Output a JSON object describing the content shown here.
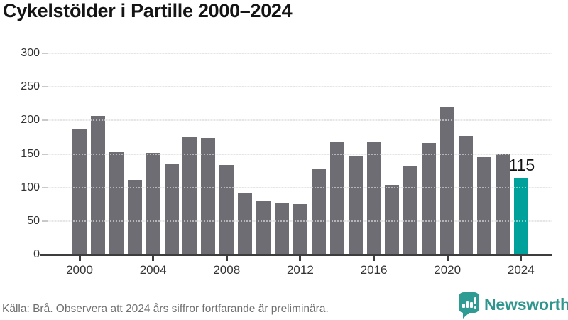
{
  "title": "Cykelstölder i Partille 2000–2024",
  "source_note": "Källa: Brå. Observera att 2024 års siffror fortfarande är preliminära.",
  "branding": {
    "name": "Newsworthy",
    "logo_icon": "speech-bubble-bar-chart-exclamation",
    "icon_color": "#2f9c94",
    "text_color": "#2f968f"
  },
  "colors": {
    "bar_default": "#6d6d73",
    "bar_highlight": "#00a19a",
    "axis": "#3d3d3d",
    "grid": "#e6e6e6",
    "title_text": "#141414",
    "tick_text": "#333333",
    "source_text": "#707070"
  },
  "chart_data": {
    "type": "bar",
    "title": "Cykelstölder i Partille 2000–2024",
    "xlabel": "",
    "ylabel": "",
    "categories": [
      2000,
      2001,
      2002,
      2003,
      2004,
      2005,
      2006,
      2007,
      2008,
      2009,
      2010,
      2011,
      2012,
      2013,
      2014,
      2015,
      2016,
      2017,
      2018,
      2019,
      2020,
      2021,
      2022,
      2023,
      2024
    ],
    "values": [
      187,
      207,
      153,
      111,
      152,
      136,
      175,
      174,
      134,
      91,
      80,
      76,
      75,
      127,
      167,
      146,
      169,
      104,
      133,
      166,
      220,
      177,
      145,
      150,
      115
    ],
    "ylim": [
      0,
      300
    ],
    "yticks": [
      0,
      50,
      100,
      150,
      200,
      250,
      300
    ],
    "xticks": [
      2000,
      2004,
      2008,
      2012,
      2016,
      2020,
      2024
    ],
    "grid": true,
    "legend_position": "none",
    "highlight_category": 2024,
    "highlight_label": "115"
  }
}
